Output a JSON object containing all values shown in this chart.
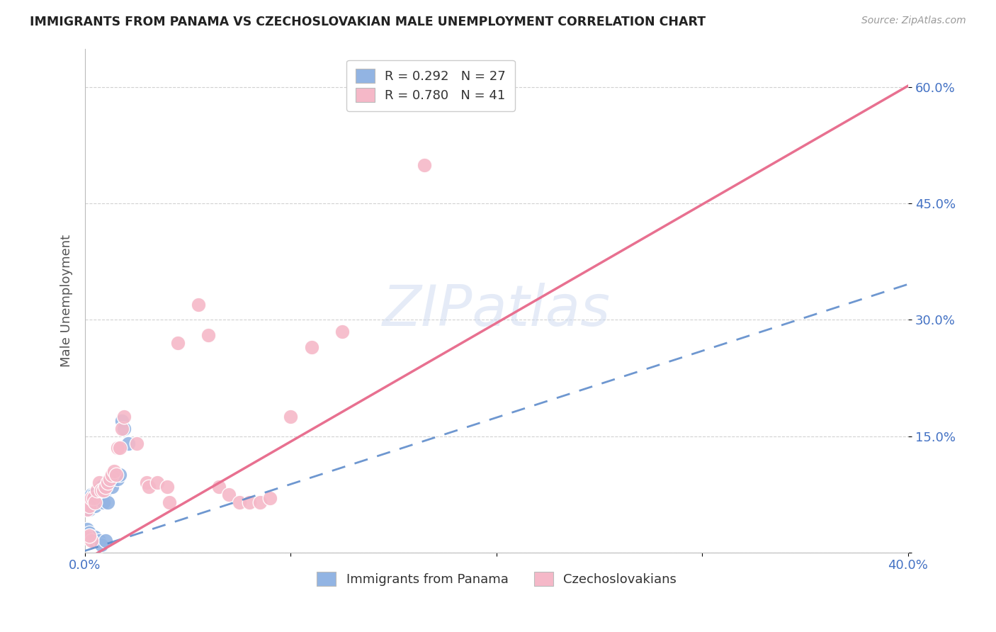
{
  "title": "IMMIGRANTS FROM PANAMA VS CZECHOSLOVAKIAN MALE UNEMPLOYMENT CORRELATION CHART",
  "source": "Source: ZipAtlas.com",
  "ylabel": "Male Unemployment",
  "xmin": 0.0,
  "xmax": 0.4,
  "ymin": 0.0,
  "ymax": 0.65,
  "yticks": [
    0.0,
    0.15,
    0.3,
    0.45,
    0.6
  ],
  "ytick_labels": [
    "",
    "15.0%",
    "30.0%",
    "45.0%",
    "60.0%"
  ],
  "xticks": [
    0.0,
    0.1,
    0.2,
    0.3,
    0.4
  ],
  "xtick_labels": [
    "0.0%",
    "",
    "",
    "",
    "40.0%"
  ],
  "legend1_label": "R = 0.292   N = 27",
  "legend2_label": "R = 0.780   N = 41",
  "legend_bottom1": "Immigrants from Panama",
  "legend_bottom2": "Czechoslovakians",
  "blue_color": "#92b4e3",
  "pink_color": "#f5b8c8",
  "blue_line_color": "#5585c8",
  "pink_line_color": "#e87090",
  "watermark": "ZIPatlas",
  "blue_line": [
    0.001,
    0.003,
    0.4
  ],
  "blue_line_y0": 0.002,
  "blue_line_slope": 0.86,
  "pink_line_y0": -0.01,
  "pink_line_slope": 1.53,
  "blue_scatter": [
    [
      0.001,
      0.055
    ],
    [
      0.002,
      0.055
    ],
    [
      0.003,
      0.075
    ],
    [
      0.004,
      0.075
    ],
    [
      0.005,
      0.06
    ],
    [
      0.006,
      0.07
    ],
    [
      0.007,
      0.075
    ],
    [
      0.008,
      0.085
    ],
    [
      0.009,
      0.065
    ],
    [
      0.01,
      0.08
    ],
    [
      0.011,
      0.065
    ],
    [
      0.012,
      0.09
    ],
    [
      0.013,
      0.085
    ],
    [
      0.015,
      0.1
    ],
    [
      0.016,
      0.095
    ],
    [
      0.017,
      0.1
    ],
    [
      0.018,
      0.17
    ],
    [
      0.019,
      0.16
    ],
    [
      0.021,
      0.14
    ],
    [
      0.001,
      0.03
    ],
    [
      0.002,
      0.025
    ],
    [
      0.003,
      0.02
    ],
    [
      0.004,
      0.015
    ],
    [
      0.005,
      0.02
    ],
    [
      0.007,
      0.015
    ],
    [
      0.008,
      0.01
    ],
    [
      0.01,
      0.015
    ]
  ],
  "pink_scatter": [
    [
      0.001,
      0.055
    ],
    [
      0.002,
      0.06
    ],
    [
      0.003,
      0.07
    ],
    [
      0.004,
      0.07
    ],
    [
      0.005,
      0.065
    ],
    [
      0.006,
      0.08
    ],
    [
      0.007,
      0.09
    ],
    [
      0.008,
      0.08
    ],
    [
      0.009,
      0.08
    ],
    [
      0.01,
      0.085
    ],
    [
      0.011,
      0.09
    ],
    [
      0.012,
      0.095
    ],
    [
      0.013,
      0.1
    ],
    [
      0.014,
      0.105
    ],
    [
      0.015,
      0.1
    ],
    [
      0.016,
      0.135
    ],
    [
      0.017,
      0.135
    ],
    [
      0.018,
      0.16
    ],
    [
      0.019,
      0.175
    ],
    [
      0.025,
      0.14
    ],
    [
      0.03,
      0.09
    ],
    [
      0.031,
      0.085
    ],
    [
      0.035,
      0.09
    ],
    [
      0.04,
      0.085
    ],
    [
      0.041,
      0.065
    ],
    [
      0.045,
      0.27
    ],
    [
      0.055,
      0.32
    ],
    [
      0.06,
      0.28
    ],
    [
      0.065,
      0.085
    ],
    [
      0.07,
      0.075
    ],
    [
      0.075,
      0.065
    ],
    [
      0.08,
      0.065
    ],
    [
      0.085,
      0.065
    ],
    [
      0.09,
      0.07
    ],
    [
      0.1,
      0.175
    ],
    [
      0.11,
      0.265
    ],
    [
      0.125,
      0.285
    ],
    [
      0.165,
      0.5
    ],
    [
      0.001,
      0.02
    ],
    [
      0.003,
      0.015
    ],
    [
      0.002,
      0.022
    ]
  ]
}
